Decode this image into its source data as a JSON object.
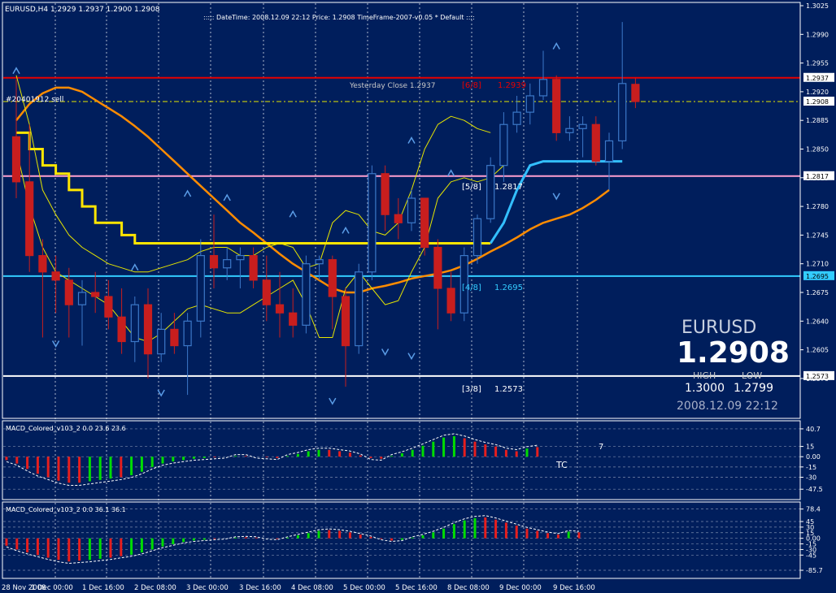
{
  "header": {
    "symbol_line": "EURUSD,H4  1.2929 1.2937 1.2900 1.2908",
    "info_line": ":::::  DateTime: 2008.12.09 22:12    Price: 1.2908    TimeFrame-2007-v0.05      *  Default     ::::"
  },
  "colors": {
    "background": "#001E5C",
    "grid": "#B0B8D0",
    "bull_body": "#3C78C8",
    "bear_body": "#C81E1E",
    "bull_hist": "#00DC00",
    "bear_hist": "#E61E1E",
    "yellow": "#FFE600",
    "orange": "#FF8C00",
    "cyan": "#33BFFF",
    "thin_yellow": "#E6E600",
    "red_line": "#E60000",
    "pink_line": "#FF9FD0",
    "murrey_cyan": "#33CCFF",
    "white": "#FFFFFF"
  },
  "panel": {
    "symbol": "EURUSD",
    "price": "1.2908",
    "high_label": "HIGH",
    "low_label": "LOW",
    "high_value": "1.3000",
    "low_value": "1.2799",
    "datetime": "2008.12.09 22:12"
  },
  "labels": {
    "yesterday_close": "Yesterday Close 1.2937",
    "order_tag": "#20401912 sell",
    "murrey_6_8": "[6/8]",
    "murrey_6_8_val": "1.2939",
    "murrey_5_8": "[5/8]",
    "murrey_5_8_val": "1.2817",
    "murrey_4_8": "[4/8]",
    "murrey_4_8_val": "1.2695",
    "murrey_3_8": "[3/8]",
    "murrey_3_8_val": "1.2573",
    "macd1_title": "MACD_Colored_v103_2 0.0 23.6 23.6",
    "macd2_title": "MACD_Colored_v103_2 0.0 36.1 36.1",
    "macd1_right_note": "7",
    "macd1_tc": "TC"
  },
  "chart_data": [
    {
      "type": "candlestick",
      "name_label": "EURUSD,H4",
      "ylim": [
        1.2537,
        1.3025
      ],
      "y_ticks": [
        "1.3025",
        "1.2990",
        "1.2955",
        "1.2920",
        "1.2885",
        "1.2850",
        "1.2815",
        "1.2780",
        "1.2745",
        "1.2710",
        "1.2675",
        "1.2640",
        "1.2605",
        "1.2570"
      ],
      "price_labels": [
        "1.2937",
        "1.2908",
        "1.2817",
        "1.2695",
        "1.2573"
      ],
      "x_tick_labels": [
        "28 Nov 2008",
        "1 Dec 00:00",
        "1 Dec 16:00",
        "2 Dec 08:00",
        "3 Dec 00:00",
        "3 Dec 16:00",
        "4 Dec 08:00",
        "5 Dec 00:00",
        "5 Dec 16:00",
        "8 Dec 08:00",
        "9 Dec 00:00",
        "9 Dec 16:00"
      ],
      "horizontal_lines": [
        {
          "name": "yesterday-close",
          "value": 1.2937,
          "color": "#E60000"
        },
        {
          "name": "current-price",
          "value": 1.2908,
          "color": "#E6E600"
        },
        {
          "name": "murrey-5-8",
          "value": 1.2817,
          "color": "#FF9FD0"
        },
        {
          "name": "murrey-4-8",
          "value": 1.2695,
          "color": "#33CCFF"
        },
        {
          "name": "murrey-3-8",
          "value": 1.2573,
          "color": "#FFFFFF"
        }
      ],
      "candles": [
        [
          1.2865,
          1.2935,
          1.279,
          1.281
        ],
        [
          1.281,
          1.288,
          1.27,
          1.272
        ],
        [
          1.272,
          1.274,
          1.262,
          1.27
        ],
        [
          1.27,
          1.272,
          1.265,
          1.269
        ],
        [
          1.269,
          1.2705,
          1.262,
          1.266
        ],
        [
          1.266,
          1.269,
          1.261,
          1.2675
        ],
        [
          1.2675,
          1.27,
          1.265,
          1.267
        ],
        [
          1.267,
          1.269,
          1.263,
          1.2645
        ],
        [
          1.2645,
          1.268,
          1.26,
          1.2615
        ],
        [
          1.2615,
          1.267,
          1.259,
          1.266
        ],
        [
          1.266,
          1.268,
          1.257,
          1.26
        ],
        [
          1.26,
          1.265,
          1.259,
          1.263
        ],
        [
          1.263,
          1.265,
          1.26,
          1.261
        ],
        [
          1.261,
          1.265,
          1.255,
          1.264
        ],
        [
          1.264,
          1.274,
          1.262,
          1.272
        ],
        [
          1.272,
          1.277,
          1.268,
          1.2705
        ],
        [
          1.2705,
          1.273,
          1.269,
          1.2715
        ],
        [
          1.2715,
          1.273,
          1.268,
          1.272
        ],
        [
          1.272,
          1.273,
          1.268,
          1.269
        ],
        [
          1.269,
          1.272,
          1.264,
          1.266
        ],
        [
          1.266,
          1.27,
          1.262,
          1.265
        ],
        [
          1.265,
          1.268,
          1.262,
          1.2635
        ],
        [
          1.2635,
          1.272,
          1.2625,
          1.271
        ],
        [
          1.271,
          1.272,
          1.269,
          1.2715
        ],
        [
          1.2715,
          1.272,
          1.263,
          1.267
        ],
        [
          1.267,
          1.268,
          1.256,
          1.261
        ],
        [
          1.261,
          1.271,
          1.26,
          1.27
        ],
        [
          1.27,
          1.283,
          1.269,
          1.282
        ],
        [
          1.282,
          1.283,
          1.275,
          1.277
        ],
        [
          1.277,
          1.279,
          1.274,
          1.276
        ],
        [
          1.276,
          1.28,
          1.275,
          1.279
        ],
        [
          1.279,
          1.279,
          1.272,
          1.273
        ],
        [
          1.273,
          1.274,
          1.263,
          1.268
        ],
        [
          1.268,
          1.27,
          1.264,
          1.265
        ],
        [
          1.265,
          1.273,
          1.264,
          1.272
        ],
        [
          1.272,
          1.277,
          1.271,
          1.2765
        ],
        [
          1.2765,
          1.284,
          1.276,
          1.283
        ],
        [
          1.283,
          1.2895,
          1.281,
          1.288
        ],
        [
          1.288,
          1.2915,
          1.287,
          1.2895
        ],
        [
          1.2895,
          1.293,
          1.288,
          1.2915
        ],
        [
          1.2915,
          1.297,
          1.291,
          1.2935
        ],
        [
          1.2935,
          1.294,
          1.286,
          1.287
        ],
        [
          1.287,
          1.289,
          1.286,
          1.2875
        ],
        [
          1.2875,
          1.289,
          1.284,
          1.288
        ],
        [
          1.288,
          1.289,
          1.283,
          1.2835
        ],
        [
          1.2835,
          1.287,
          1.28,
          1.286
        ],
        [
          1.286,
          1.3005,
          1.285,
          1.293
        ],
        [
          1.2929,
          1.2937,
          1.29,
          1.2908
        ]
      ],
      "indicators": {
        "yellow_step": [
          1.287,
          1.285,
          1.283,
          1.282,
          1.28,
          1.278,
          1.276,
          1.276,
          1.2745,
          1.2735,
          1.2735,
          1.2735,
          1.2735,
          1.2735,
          1.2735,
          1.2735,
          1.2735,
          1.2735,
          1.2735,
          1.2735,
          1.2735,
          1.2735,
          1.2735,
          1.2735,
          1.2735,
          1.2735,
          1.2735,
          1.2735,
          1.2735,
          1.2735,
          1.2735,
          1.2735,
          1.2735,
          1.2735,
          1.2735,
          1.2735,
          1.2735
        ],
        "cyan_step": [
          1.2735,
          1.276,
          1.28,
          1.283,
          1.2835,
          1.2835,
          1.2835,
          1.2835,
          1.2835,
          1.2835,
          1.2835
        ],
        "orange_ma": [
          1.2885,
          1.2905,
          1.2918,
          1.2925,
          1.2925,
          1.292,
          1.291,
          1.29,
          1.289,
          1.2878,
          1.2865,
          1.285,
          1.2835,
          1.282,
          1.2805,
          1.279,
          1.2775,
          1.276,
          1.2748,
          1.2735,
          1.2722,
          1.271,
          1.27,
          1.269,
          1.268,
          1.2675,
          1.2675,
          1.268,
          1.2683,
          1.2687,
          1.2692,
          1.2695,
          1.2698,
          1.2702,
          1.2708,
          1.2716,
          1.2725,
          1.2733,
          1.2742,
          1.2752,
          1.276,
          1.2765,
          1.277,
          1.2778,
          1.2788,
          1.28
        ],
        "thin_band_upper": [
          1.294,
          1.288,
          1.28,
          1.277,
          1.2745,
          1.273,
          1.272,
          1.271,
          1.2705,
          1.27,
          1.27,
          1.2705,
          1.271,
          1.2715,
          1.2725,
          1.273,
          1.273,
          1.272,
          1.272,
          1.273,
          1.2735,
          1.273,
          1.2705,
          1.271,
          1.276,
          1.2775,
          1.277,
          1.275,
          1.2745,
          1.276,
          1.28,
          1.285,
          1.288,
          1.289,
          1.2885,
          1.2875,
          1.287
        ],
        "thin_band_lower": [
          1.285,
          1.278,
          1.273,
          1.27,
          1.269,
          1.268,
          1.267,
          1.266,
          1.264,
          1.262,
          1.2615,
          1.2625,
          1.264,
          1.2655,
          1.266,
          1.2655,
          1.265,
          1.265,
          1.266,
          1.267,
          1.268,
          1.269,
          1.266,
          1.262,
          1.262,
          1.268,
          1.27,
          1.268,
          1.266,
          1.2665,
          1.27,
          1.273,
          1.279,
          1.281,
          1.2815,
          1.281,
          1.2815,
          1.283
        ]
      }
    },
    {
      "type": "bar",
      "name_label": "MACD_Colored_v103_2 0.0 23.6 23.6",
      "ylim": [
        -52,
        43
      ],
      "y_ticks": [
        "40.7",
        "15",
        "0.00",
        "-15",
        "-30",
        "-47.5"
      ],
      "values": [
        -5,
        -10,
        -18,
        -25,
        -30,
        -35,
        -38,
        -38,
        -36,
        -34,
        -32,
        -30,
        -27,
        -22,
        -15,
        -10,
        -7,
        -5,
        -3,
        -2,
        -1,
        0,
        1,
        1,
        0,
        -1,
        -2,
        1,
        4,
        8,
        10,
        10,
        8,
        6,
        2,
        -2,
        -3,
        1,
        5,
        10,
        16,
        22,
        28,
        30,
        27,
        22,
        18,
        15,
        10,
        8,
        12,
        14
      ],
      "colors": [
        "r",
        "r",
        "r",
        "r",
        "r",
        "r",
        "r",
        "r",
        "g",
        "g",
        "g",
        "r",
        "g",
        "g",
        "g",
        "g",
        "g",
        "g",
        "g",
        "g",
        "r",
        "g",
        "g",
        "r",
        "r",
        "r",
        "r",
        "g",
        "g",
        "g",
        "g",
        "r",
        "r",
        "r",
        "r",
        "r",
        "r",
        "g",
        "g",
        "g",
        "g",
        "g",
        "g",
        "g",
        "r",
        "r",
        "r",
        "r",
        "r",
        "r",
        "g",
        "r"
      ]
    },
    {
      "type": "bar",
      "name_label": "MACD_Colored_v103_2 0.0 36.1 36.1",
      "ylim": [
        -90,
        82
      ],
      "y_ticks": [
        "78.4",
        "45",
        "30",
        "15",
        "0.00",
        "-15",
        "-30",
        "-45",
        "-85.7"
      ],
      "values": [
        -20,
        -30,
        -38,
        -45,
        -52,
        -58,
        -62,
        -60,
        -58,
        -55,
        -52,
        -48,
        -44,
        -38,
        -30,
        -22,
        -16,
        -10,
        -6,
        -4,
        -2,
        0,
        2,
        3,
        2,
        0,
        -2,
        2,
        8,
        14,
        20,
        22,
        20,
        16,
        10,
        4,
        -2,
        -6,
        -4,
        2,
        8,
        16,
        26,
        38,
        48,
        54,
        56,
        50,
        42,
        34,
        26,
        20,
        14,
        10,
        18,
        16
      ],
      "colors": [
        "r",
        "r",
        "r",
        "r",
        "r",
        "r",
        "r",
        "r",
        "g",
        "g",
        "r",
        "r",
        "g",
        "g",
        "g",
        "g",
        "g",
        "g",
        "g",
        "g",
        "r",
        "g",
        "g",
        "r",
        "r",
        "r",
        "r",
        "g",
        "g",
        "g",
        "g",
        "r",
        "r",
        "r",
        "r",
        "r",
        "r",
        "r",
        "g",
        "g",
        "g",
        "g",
        "g",
        "g",
        "g",
        "g",
        "r",
        "r",
        "r",
        "r",
        "r",
        "r",
        "r",
        "r",
        "g",
        "r"
      ]
    }
  ]
}
